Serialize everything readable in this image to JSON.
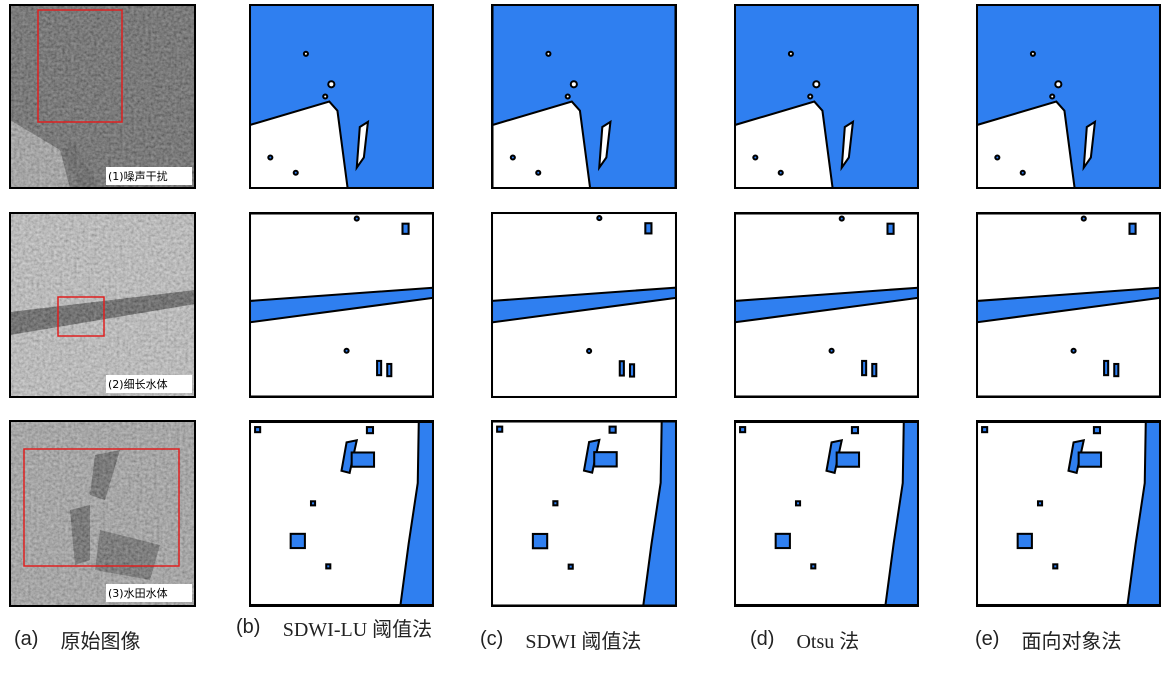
{
  "panel_labels": [
    "(1)噪声干扰",
    "(2)细长水体",
    "(3)水田水体"
  ],
  "captions": [
    {
      "letter": "(a)",
      "text": "原始图像"
    },
    {
      "letter": "(b)",
      "text": "SDWI-LU 阈值法"
    },
    {
      "letter": "(c)",
      "text": "SDWI 阈值法"
    },
    {
      "letter": "(d)",
      "text": "Otsu 法"
    },
    {
      "letter": "(e)",
      "text": "面向对象法"
    }
  ]
}
